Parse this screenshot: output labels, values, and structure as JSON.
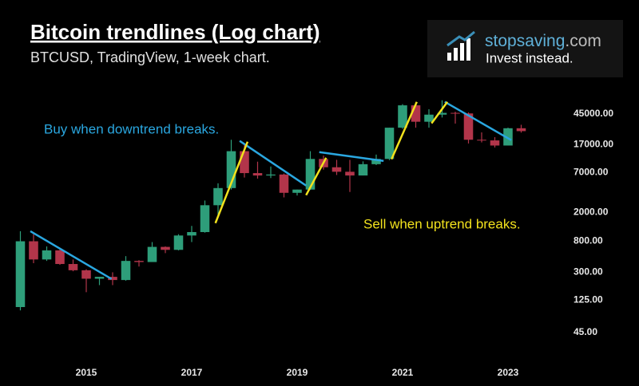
{
  "chart_data": {
    "type": "candlestick",
    "title": "Bitcoin trendlines (Log chart)",
    "subtitle": "BTCUSD, TradingView, 1-week chart.",
    "logo": {
      "name": "stopsaving",
      "domain": ".com",
      "tagline": "Invest instead."
    },
    "annotations": [
      {
        "text": "Buy when downtrend breaks.",
        "color": "#2aa7e0"
      },
      {
        "text": "Sell when uptrend breaks.",
        "color": "#f2e21d"
      }
    ],
    "log_scale": true,
    "up_color": "#2e9e7a",
    "down_color": "#b2354a",
    "x": [
      2013.75,
      2014.0,
      2014.25,
      2014.5,
      2014.75,
      2015.0,
      2015.25,
      2015.5,
      2015.75,
      2016.0,
      2016.25,
      2016.5,
      2016.75,
      2017.0,
      2017.25,
      2017.5,
      2017.75,
      2018.0,
      2018.25,
      2018.5,
      2018.75,
      2019.0,
      2019.25,
      2019.5,
      2019.75,
      2020.0,
      2020.25,
      2020.5,
      2020.75,
      2021.0,
      2021.25,
      2021.5,
      2021.75,
      2022.0,
      2022.25,
      2022.5,
      2022.75,
      2023.0,
      2023.25
    ],
    "open": [
      100,
      800,
      450,
      600,
      390,
      320,
      245,
      260,
      235,
      430,
      415,
      670,
      610,
      960,
      1070,
      2500,
      4300,
      13800,
      6900,
      6400,
      6600,
      3700,
      4100,
      10800,
      8300,
      7200,
      6400,
      9150,
      10800,
      29000,
      58800,
      35000,
      43800,
      46300,
      45500,
      19800,
      19400,
      16500,
      28500
    ],
    "high": [
      1100,
      1000,
      680,
      620,
      450,
      330,
      260,
      300,
      500,
      440,
      780,
      680,
      1000,
      1300,
      2900,
      5000,
      19800,
      17000,
      9900,
      8500,
      6800,
      4100,
      13800,
      12000,
      10500,
      10500,
      10000,
      12400,
      29000,
      61000,
      64800,
      52000,
      69000,
      48000,
      47000,
      25000,
      21500,
      29000,
      31800
    ],
    "low": [
      90,
      400,
      430,
      380,
      310,
      160,
      200,
      200,
      230,
      360,
      420,
      550,
      600,
      780,
      1050,
      1850,
      4100,
      6000,
      5800,
      5900,
      3200,
      3400,
      4050,
      7700,
      6500,
      3800,
      6400,
      8900,
      10400,
      28000,
      29000,
      29000,
      40000,
      33000,
      17600,
      18200,
      15500,
      16500,
      24800
    ],
    "close": [
      800,
      450,
      600,
      390,
      320,
      245,
      260,
      235,
      430,
      415,
      670,
      610,
      960,
      1070,
      2500,
      4300,
      13800,
      6900,
      6400,
      6600,
      3700,
      4100,
      10800,
      8300,
      7200,
      6400,
      9150,
      10800,
      29000,
      58800,
      35000,
      43800,
      46300,
      45500,
      19800,
      19400,
      16500,
      28500,
      26000
    ],
    "downtrends": [
      {
        "x": [
          2013.94,
          2015.48
        ],
        "y": [
          1100,
          243
        ]
      },
      {
        "x": [
          2017.91,
          2019.17
        ],
        "y": [
          19100,
          4650
        ]
      },
      {
        "x": [
          2019.42,
          2020.64
        ],
        "y": [
          13400,
          10150
        ]
      },
      {
        "x": [
          2021.8,
          2023.06
        ],
        "y": [
          65600,
          19600
        ]
      }
    ],
    "uptrends": [
      {
        "x": [
          2017.45,
          2018.06
        ],
        "y": [
          1420,
          18600
        ]
      },
      {
        "x": [
          2019.17,
          2019.55
        ],
        "y": [
          3440,
          11200
        ]
      },
      {
        "x": [
          2020.79,
          2021.27
        ],
        "y": [
          10700,
          65600
        ]
      },
      {
        "x": [
          2021.55,
          2021.85
        ],
        "y": [
          33300,
          65600
        ]
      }
    ],
    "xlim": [
      2013.5,
      2024
    ],
    "xticks": [
      2015,
      2017,
      2019,
      2021,
      2023
    ],
    "ylim": [
      25,
      100000
    ],
    "yticks": [
      {
        "value": 45,
        "label": "45.00"
      },
      {
        "value": 125,
        "label": "125.00"
      },
      {
        "value": 300,
        "label": "300.00"
      },
      {
        "value": 800,
        "label": "800.00"
      },
      {
        "value": 2000,
        "label": "2000.00"
      },
      {
        "value": 7000,
        "label": "7000.00"
      },
      {
        "value": 17000,
        "label": "17000.00"
      },
      {
        "value": 45000,
        "label": "45000.00"
      }
    ]
  }
}
